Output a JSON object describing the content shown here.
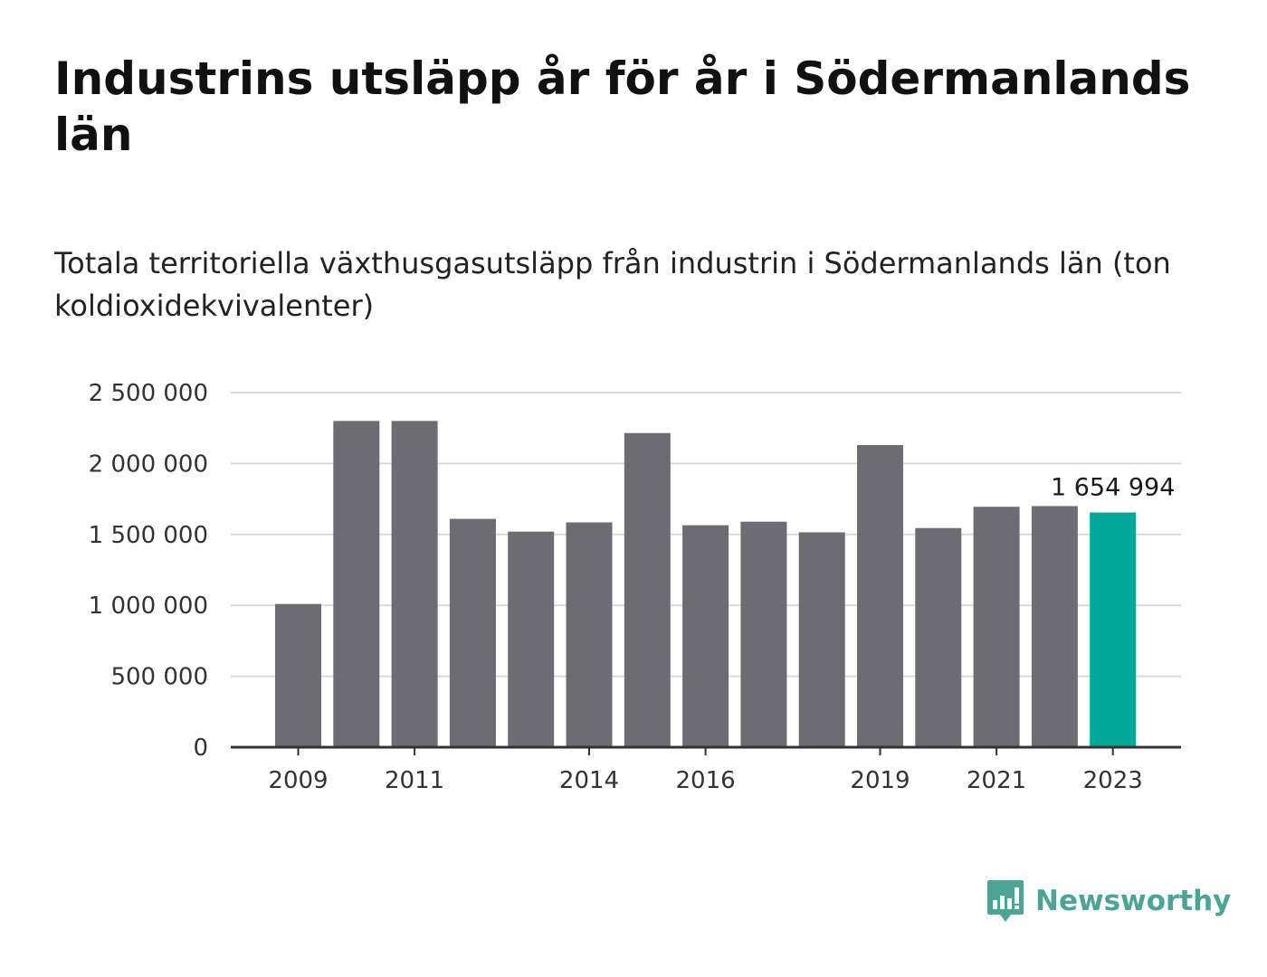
{
  "header": {
    "title": "Industrins utsläpp år för år i Södermanlands län",
    "subtitle": "Totala territoriella växthusgasutsläpp från industrin i Södermanlands län (ton koldioxidekvivalenter)"
  },
  "brand": {
    "name": "Newsworthy",
    "icon": "bar-chart-speech-bubble-icon",
    "color": "#4aa596"
  },
  "colors": {
    "bar": "#6d6c72",
    "highlight": "#00a89a",
    "grid": "#d9d9d9",
    "axis": "#333333"
  },
  "chart_data": {
    "type": "bar",
    "categories": [
      2009,
      2010,
      2011,
      2012,
      2013,
      2014,
      2015,
      2016,
      2017,
      2018,
      2019,
      2020,
      2021,
      2022,
      2023
    ],
    "values": [
      1010000,
      2300000,
      2300000,
      1610000,
      1520000,
      1585000,
      2215000,
      1565000,
      1590000,
      1515000,
      2130000,
      1545000,
      1695000,
      1700000,
      1654994
    ],
    "highlight_index": 14,
    "highlight_label": "1 654 994",
    "x_tick_labels": [
      "2009",
      "2011",
      "2014",
      "2016",
      "2019",
      "2021",
      "2023"
    ],
    "y_tick_labels": [
      "0",
      "500 000",
      "1 000 000",
      "1 500 000",
      "2 000 000",
      "2 500 000"
    ],
    "y_ticks": [
      0,
      500000,
      1000000,
      1500000,
      2000000,
      2500000
    ],
    "ylim": [
      0,
      2500000
    ],
    "xlabel": "",
    "ylabel": "",
    "grid": true
  }
}
